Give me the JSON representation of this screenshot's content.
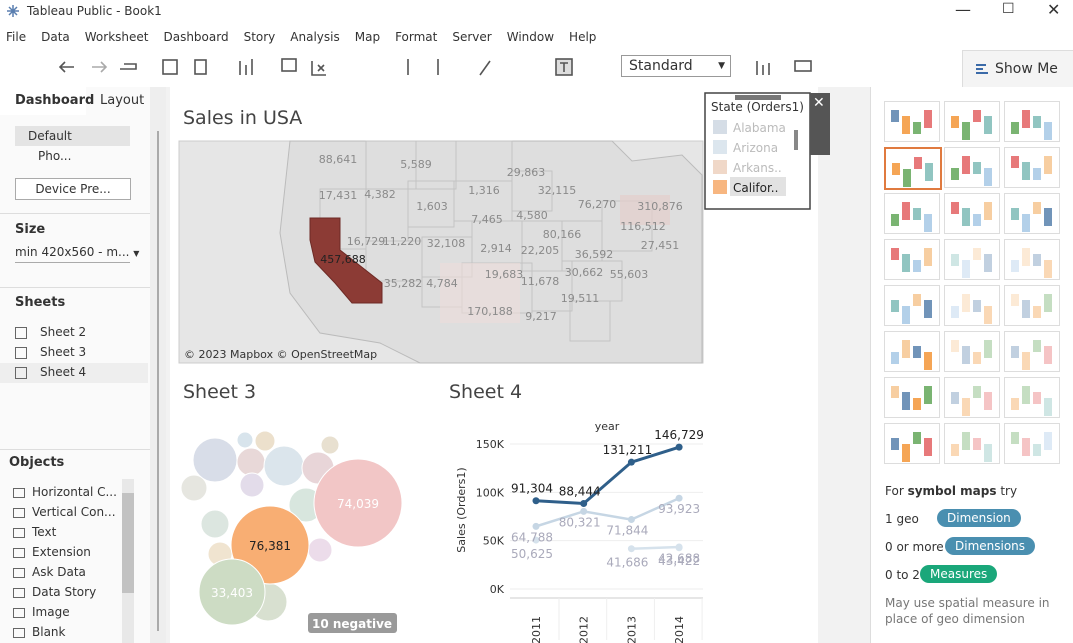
{
  "window": {
    "title": "Tableau Public - Book1"
  },
  "menu": [
    "File",
    "Data",
    "Worksheet",
    "Dashboard",
    "Story",
    "Analysis",
    "Map",
    "Format",
    "Server",
    "Window",
    "Help"
  ],
  "toolbar": {
    "fit": "Standard",
    "show_me": "Show Me"
  },
  "left_panel": {
    "tabs": [
      "Dashboard",
      "Layout"
    ],
    "device": {
      "items": [
        "Default",
        "Pho..."
      ],
      "button": "Device Pre..."
    },
    "size": {
      "heading": "Size",
      "value": "min 420x560 - m..."
    },
    "sheets": {
      "heading": "Sheets",
      "items": [
        "Sheet 2",
        "Sheet 3",
        "Sheet 4"
      ]
    },
    "objects": {
      "heading": "Objects",
      "items": [
        "Horizontal C...",
        "Vertical Con...",
        "Text",
        "Extension",
        "Ask Data",
        "Data Story",
        "Image",
        "Blank"
      ]
    }
  },
  "dashboard": {
    "map": {
      "title": "Sales in USA",
      "attribution": "© 2023 Mapbox © OpenStreetMap",
      "labels": [
        "88,641",
        "5,589",
        "29,863",
        "17,431",
        "4,382",
        "1,316",
        "32,115",
        "1,603",
        "7,465",
        "4,580",
        "76,270",
        "310,876",
        "116,512",
        "16,729",
        "11,220",
        "32,108",
        "2,914",
        "22,205",
        "80,166",
        "27,451",
        "457,688",
        "19,683",
        "36,592",
        "30,662",
        "55,603",
        "35,282",
        "4,784",
        "11,678",
        "19,511",
        "170,188",
        "9,217"
      ]
    },
    "legend": {
      "title": "State (Orders1)",
      "items": [
        "Alabama",
        "Arizona",
        "Arkans..",
        "Califor.."
      ]
    },
    "sheet3": {
      "title": "Sheet 3",
      "labels": [
        "74,039",
        "76,381",
        "33,403"
      ],
      "badge": "10 negative"
    },
    "sheet4": {
      "title": "Sheet 4",
      "x_title": "year",
      "y_title": "Sales (Orders1)",
      "categories": [
        "2011",
        "2012",
        "2013",
        "2014"
      ],
      "ylim": [
        0,
        150000
      ],
      "yticks": [
        {
          "value": 0,
          "label": "0K"
        },
        {
          "value": 50000,
          "label": "50K"
        },
        {
          "value": 100000,
          "label": "100K"
        },
        {
          "value": 150000,
          "label": "150K"
        }
      ],
      "series": [
        {
          "color": "#2f5f8a",
          "values": [
            91304,
            88444,
            131211,
            146729
          ],
          "value_labels": [
            "91,304",
            "88,444",
            "131,211",
            "146,729"
          ]
        },
        {
          "color": "#c6d6e4",
          "values": [
            64788,
            80321,
            71844,
            93923
          ],
          "value_labels": [
            "64,788",
            "80,321",
            "71,844",
            "93,923"
          ]
        },
        {
          "color": "#d6e2ec",
          "values": [
            50625,
            null,
            41686,
            43422
          ],
          "value_labels": [
            "50,625",
            null,
            "41,686",
            "43,422"
          ]
        },
        {
          "color": "#d6e2ec",
          "values": [
            null,
            null,
            null,
            42688
          ],
          "value_labels": [
            null,
            null,
            null,
            "42,688"
          ]
        }
      ]
    }
  },
  "show_me": {
    "hint": {
      "prefix": "For",
      "bold": "symbol maps",
      "suffix": "try"
    },
    "rows": [
      {
        "label": "1 geo",
        "pill": "Dimension"
      },
      {
        "label": "0 or more",
        "pill": "Dimensions"
      },
      {
        "label": "0 to 2",
        "pill": "Measures"
      }
    ],
    "note": "May use spatial measure in place of geo dimension"
  }
}
